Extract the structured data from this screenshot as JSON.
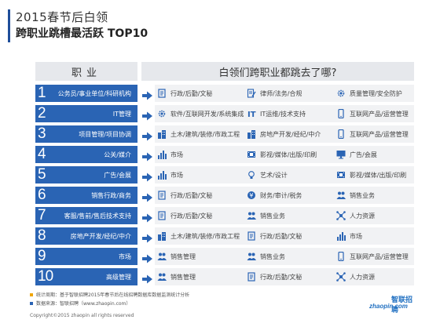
{
  "header": {
    "title_line1": "2015春节后白领",
    "title_line2": "跨职业跳槽最活跃 TOP10"
  },
  "table": {
    "col_job": "职业",
    "col_dest": "白领们跨职业都跳去了哪?",
    "rows": [
      {
        "num": "1",
        "job": "公务员/事业单位/科研机构",
        "dests": [
          {
            "label": "行政/后勤/文秘",
            "icon": "document-icon"
          },
          {
            "label": "律师/法务/合规",
            "icon": "contract-icon"
          },
          {
            "label": "质量管理/安全防护",
            "icon": "gear-icon"
          }
        ]
      },
      {
        "num": "2",
        "job": "IT管理",
        "dests": [
          {
            "label": "软件/互联网开发/系统集成",
            "icon": "gear-icon"
          },
          {
            "label": "IT运维/技术支持",
            "icon": "it-icon"
          },
          {
            "label": "互联网产品/运营管理",
            "icon": "phone-icon"
          }
        ]
      },
      {
        "num": "3",
        "job": "项目管理/项目协调",
        "dests": [
          {
            "label": "土木/建筑/装修/市政工程",
            "icon": "building-icon"
          },
          {
            "label": "房地产开发/经纪/中介",
            "icon": "building-icon"
          },
          {
            "label": "互联网产品/运营管理",
            "icon": "phone-icon"
          }
        ]
      },
      {
        "num": "4",
        "job": "公关/媒介",
        "dests": [
          {
            "label": "市场",
            "icon": "bar-chart-icon"
          },
          {
            "label": "影视/媒体/出版/印刷",
            "icon": "film-icon"
          },
          {
            "label": "广告/会展",
            "icon": "monitor-icon"
          }
        ]
      },
      {
        "num": "5",
        "job": "广告/会展",
        "dests": [
          {
            "label": "市场",
            "icon": "bar-chart-icon"
          },
          {
            "label": "艺术/设计",
            "icon": "bulb-icon"
          },
          {
            "label": "影视/媒体/出版/印刷",
            "icon": "film-icon"
          }
        ]
      },
      {
        "num": "6",
        "job": "销售行政/商务",
        "dests": [
          {
            "label": "行政/后勤/文秘",
            "icon": "document-icon"
          },
          {
            "label": "财务/审计/税务",
            "icon": "money-icon"
          },
          {
            "label": "销售业务",
            "icon": "people-icon"
          }
        ]
      },
      {
        "num": "7",
        "job": "客服/售前/售后技术支持",
        "dests": [
          {
            "label": "行政/后勤/文秘",
            "icon": "document-icon"
          },
          {
            "label": "销售业务",
            "icon": "people-icon"
          },
          {
            "label": "人力资源",
            "icon": "network-icon"
          }
        ]
      },
      {
        "num": "8",
        "job": "房地产开发/经纪/中介",
        "dests": [
          {
            "label": "土木/建筑/装修/市政工程",
            "icon": "building-icon"
          },
          {
            "label": "行政/后勤/文秘",
            "icon": "document-icon"
          },
          {
            "label": "市场",
            "icon": "bar-chart-icon"
          }
        ]
      },
      {
        "num": "9",
        "job": "市场",
        "dests": [
          {
            "label": "销售管理",
            "icon": "people-icon"
          },
          {
            "label": "销售业务",
            "icon": "people-icon"
          },
          {
            "label": "互联网产品/运营管理",
            "icon": "phone-icon"
          }
        ]
      },
      {
        "num": "10",
        "job": "高级管理",
        "dests": [
          {
            "label": "销售管理",
            "icon": "people-icon"
          },
          {
            "label": "行政/后勤/文秘",
            "icon": "document-icon"
          },
          {
            "label": "人力资源",
            "icon": "network-icon"
          }
        ]
      }
    ]
  },
  "notes": [
    {
      "text": "统计周期：基于智联招聘2015年春节后在线招聘数据库数据监测统计分析",
      "color": "#f0a500"
    },
    {
      "text": "数据来源：智联招聘（www.zhaopin.com）",
      "color": "#2a64b4"
    }
  ],
  "copyright": "Copyright©2015 zhaopin all rights reserved",
  "logo": {
    "cn": "智联招聘",
    "en": "zhaopin.com"
  },
  "colors": {
    "primary": "#2a64b4",
    "header_bg": "#e6e8ec",
    "row_bg": "#f1f2f4",
    "icon": "#2a64b4"
  }
}
